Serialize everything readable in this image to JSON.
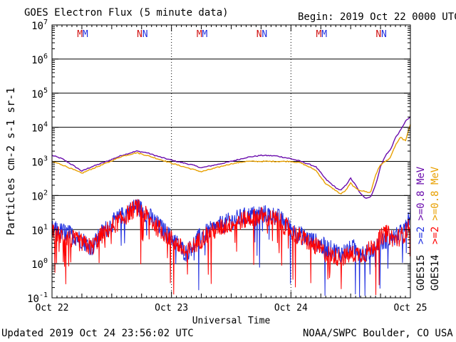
{
  "header": {
    "title": "GOES Electron Flux (5 minute data)",
    "begin": "Begin: 2019 Oct 22 0000 UTC"
  },
  "footer": {
    "updated": "Updated 2019 Oct 24 23:56:02 UTC",
    "credit": "NOAA/SWPC Boulder, CO USA"
  },
  "chart_data": {
    "type": "line",
    "title": "GOES Electron Flux (5 minute data)",
    "xlabel": "Universal Time",
    "ylabel": "Particles cm-2 s-1 sr-1",
    "yscale": "log",
    "ylim": [
      0.1,
      10000000
    ],
    "xlim_hours": [
      0,
      72
    ],
    "x_tick_labels": [
      "Oct 22",
      "Oct 23",
      "Oct 24",
      "Oct 25"
    ],
    "y_tick_labels": [
      "10^-1",
      "10^0",
      "10^1",
      "10^2",
      "10^3",
      "10^4",
      "10^5",
      "10^6",
      "10^7"
    ],
    "threshold_line": 1000,
    "grid": "horizontal at each decade, dotted vertical at day boundaries",
    "legend": [
      {
        "satellite": "GOES15",
        "label": ">=2",
        "color": "#1f2ee0"
      },
      {
        "satellite": "GOES14",
        "label": ">=2",
        "color": "#ff0000"
      },
      {
        "satellite": "GOES15",
        "label": ">=0.8 MeV",
        "color": "#6a0dad"
      },
      {
        "satellite": "GOES14",
        "label": ">=0.8 MeV",
        "color": "#e8a000"
      }
    ],
    "markers": [
      {
        "label": "M",
        "hour": 5.6,
        "color": "#d01010"
      },
      {
        "label": "M",
        "hour": 6.7,
        "color": "#1f2ee0"
      },
      {
        "label": "N",
        "hour": 17.6,
        "color": "#d01010"
      },
      {
        "label": "N",
        "hour": 18.7,
        "color": "#1f2ee0"
      },
      {
        "label": "M",
        "hour": 29.6,
        "color": "#d01010"
      },
      {
        "label": "M",
        "hour": 30.7,
        "color": "#1f2ee0"
      },
      {
        "label": "N",
        "hour": 41.6,
        "color": "#d01010"
      },
      {
        "label": "N",
        "hour": 42.7,
        "color": "#1f2ee0"
      },
      {
        "label": "M",
        "hour": 53.6,
        "color": "#d01010"
      },
      {
        "label": "M",
        "hour": 54.7,
        "color": "#1f2ee0"
      },
      {
        "label": "N",
        "hour": 65.6,
        "color": "#d01010"
      },
      {
        "label": "N",
        "hour": 66.7,
        "color": "#1f2ee0"
      }
    ],
    "series": [
      {
        "name": "GOES15 >=0.8 MeV",
        "color": "#6a0dad",
        "points": [
          [
            0,
            1500
          ],
          [
            2,
            1200
          ],
          [
            4,
            800
          ],
          [
            6,
            520
          ],
          [
            8,
            700
          ],
          [
            11,
            1000
          ],
          [
            14,
            1500
          ],
          [
            17,
            2000
          ],
          [
            19,
            1800
          ],
          [
            22,
            1300
          ],
          [
            25,
            1000
          ],
          [
            28,
            800
          ],
          [
            30,
            650
          ],
          [
            33,
            800
          ],
          [
            36,
            1000
          ],
          [
            39,
            1300
          ],
          [
            42,
            1500
          ],
          [
            45,
            1450
          ],
          [
            48,
            1200
          ],
          [
            50,
            1000
          ],
          [
            53,
            700
          ],
          [
            55,
            300
          ],
          [
            57,
            170
          ],
          [
            58,
            140
          ],
          [
            59,
            200
          ],
          [
            60,
            320
          ],
          [
            61,
            200
          ],
          [
            62,
            110
          ],
          [
            63,
            85
          ],
          [
            64,
            90
          ],
          [
            65,
            200
          ],
          [
            66,
            700
          ],
          [
            67,
            1500
          ],
          [
            68,
            2200
          ],
          [
            69,
            5000
          ],
          [
            70,
            8000
          ],
          [
            71,
            15000
          ],
          [
            72,
            20000
          ]
        ]
      },
      {
        "name": "GOES14 >=0.8 MeV",
        "color": "#e8a000",
        "points": [
          [
            0,
            1000
          ],
          [
            2,
            800
          ],
          [
            4,
            600
          ],
          [
            6,
            450
          ],
          [
            8,
            600
          ],
          [
            11,
            900
          ],
          [
            14,
            1400
          ],
          [
            17,
            1800
          ],
          [
            19,
            1500
          ],
          [
            22,
            1100
          ],
          [
            25,
            800
          ],
          [
            28,
            600
          ],
          [
            30,
            500
          ],
          [
            33,
            650
          ],
          [
            36,
            850
          ],
          [
            39,
            1000
          ],
          [
            42,
            1000
          ],
          [
            45,
            1000
          ],
          [
            48,
            1000
          ],
          [
            50,
            900
          ],
          [
            53,
            550
          ],
          [
            55,
            220
          ],
          [
            57,
            140
          ],
          [
            58,
            110
          ],
          [
            59,
            140
          ],
          [
            60,
            230
          ],
          [
            61,
            160
          ],
          [
            62,
            140
          ],
          [
            63,
            130
          ],
          [
            64,
            120
          ],
          [
            65,
            400
          ],
          [
            66,
            800
          ],
          [
            67,
            1000
          ],
          [
            68,
            1300
          ],
          [
            69,
            3000
          ],
          [
            70,
            5000
          ],
          [
            71,
            4000
          ],
          [
            72,
            12000
          ]
        ]
      },
      {
        "name": "GOES15 >=2",
        "color": "#1f2ee0",
        "noisy": true,
        "points": [
          [
            0,
            10
          ],
          [
            3,
            8
          ],
          [
            6,
            5
          ],
          [
            8,
            3
          ],
          [
            10,
            8
          ],
          [
            12,
            15
          ],
          [
            14,
            25
          ],
          [
            16,
            40
          ],
          [
            17,
            50
          ],
          [
            19,
            30
          ],
          [
            21,
            15
          ],
          [
            23,
            8
          ],
          [
            25,
            4
          ],
          [
            27,
            2
          ],
          [
            29,
            5
          ],
          [
            31,
            8
          ],
          [
            33,
            12
          ],
          [
            36,
            18
          ],
          [
            39,
            25
          ],
          [
            42,
            30
          ],
          [
            45,
            25
          ],
          [
            47,
            15
          ],
          [
            49,
            8
          ],
          [
            52,
            5
          ],
          [
            55,
            3
          ],
          [
            58,
            2
          ],
          [
            61,
            3
          ],
          [
            63,
            2
          ],
          [
            65,
            3
          ],
          [
            67,
            5
          ],
          [
            69,
            6
          ],
          [
            71,
            10
          ],
          [
            72,
            30
          ]
        ]
      },
      {
        "name": "GOES14 >=2",
        "color": "#ff0000",
        "noisy": true,
        "points": [
          [
            0,
            8
          ],
          [
            3,
            6
          ],
          [
            6,
            4
          ],
          [
            8,
            3
          ],
          [
            10,
            7
          ],
          [
            12,
            12
          ],
          [
            14,
            20
          ],
          [
            16,
            35
          ],
          [
            17,
            45
          ],
          [
            19,
            25
          ],
          [
            21,
            12
          ],
          [
            23,
            7
          ],
          [
            25,
            4
          ],
          [
            27,
            2
          ],
          [
            29,
            4
          ],
          [
            31,
            7
          ],
          [
            33,
            10
          ],
          [
            36,
            15
          ],
          [
            39,
            20
          ],
          [
            42,
            25
          ],
          [
            45,
            20
          ],
          [
            47,
            12
          ],
          [
            49,
            7
          ],
          [
            52,
            4
          ],
          [
            55,
            2
          ],
          [
            58,
            1.5
          ],
          [
            61,
            2
          ],
          [
            63,
            2
          ],
          [
            65,
            4
          ],
          [
            67,
            8
          ],
          [
            69,
            5
          ],
          [
            71,
            8
          ],
          [
            72,
            15
          ]
        ]
      }
    ]
  }
}
